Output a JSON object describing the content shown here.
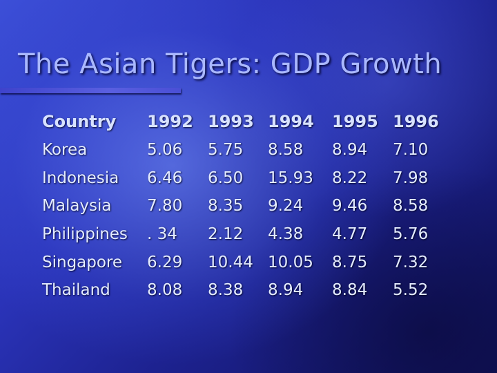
{
  "slide": {
    "title": "The Asian Tigers: GDP Growth"
  },
  "table": {
    "headers": [
      "Country",
      "1992",
      "1993",
      "1994",
      "1995",
      "1996"
    ],
    "rows": [
      [
        "Korea",
        "5.06",
        "5.75",
        "8.58",
        "8.94",
        "7.10"
      ],
      [
        "Indonesia",
        "6.46",
        "6.50",
        "15.93",
        "8.22",
        "7.98"
      ],
      [
        "Malaysia",
        "7.80",
        "8.35",
        "9.24",
        "9.46",
        "8.58"
      ],
      [
        "Philippines",
        ". 34",
        "2.12",
        "4.38",
        "4.77",
        "5.76"
      ],
      [
        "Singapore",
        "6.29",
        "10.44",
        "10.05",
        "8.75",
        "7.32"
      ],
      [
        "Thailand",
        "8.08",
        "8.38",
        "8.94",
        "8.84",
        "5.52"
      ]
    ]
  },
  "colors": {
    "title": "#aab8ff",
    "text": "#e4ecff",
    "accent_bar": "#4a4fd6",
    "background_dark": "#10125a",
    "background_light": "#3c4fd8"
  }
}
